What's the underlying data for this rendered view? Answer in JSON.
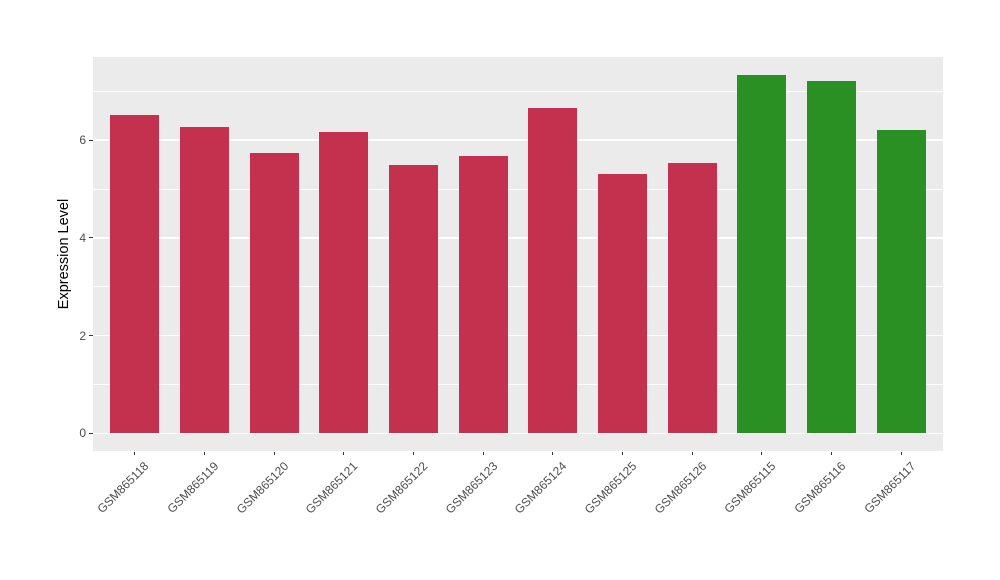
{
  "chart_data": {
    "type": "bar",
    "title": "",
    "xlabel": "",
    "ylabel": "Expression Level",
    "categories": [
      "GSM865118",
      "GSM865119",
      "GSM865120",
      "GSM865121",
      "GSM865122",
      "GSM865123",
      "GSM865124",
      "GSM865125",
      "GSM865126",
      "GSM865115",
      "GSM865116",
      "GSM865117"
    ],
    "values": [
      6.52,
      6.26,
      5.74,
      6.17,
      5.49,
      5.68,
      6.66,
      5.31,
      5.53,
      7.33,
      7.21,
      6.21
    ],
    "bar_colors": [
      "#C4314E",
      "#C4314E",
      "#C4314E",
      "#C4314E",
      "#C4314E",
      "#C4314E",
      "#C4314E",
      "#C4314E",
      "#C4314E",
      "#2B9024",
      "#2B9024",
      "#2B9024"
    ],
    "yticks": [
      0,
      2,
      4,
      6
    ],
    "minor_gridlines": [
      1,
      3,
      5,
      7
    ],
    "major_gridlines": [
      0,
      2,
      4,
      6
    ],
    "ylim": [
      -0.36,
      7.7
    ],
    "bar_band_fraction": 0.7,
    "grid": true,
    "legend": "none",
    "colors": {
      "panel_background": "#EBEBEB",
      "gridline": "#FFFFFF",
      "tick_mark": "#333333",
      "axis_text": "#4D4D4D",
      "axis_title": "#000000",
      "page_background": "#FFFFFF"
    }
  }
}
